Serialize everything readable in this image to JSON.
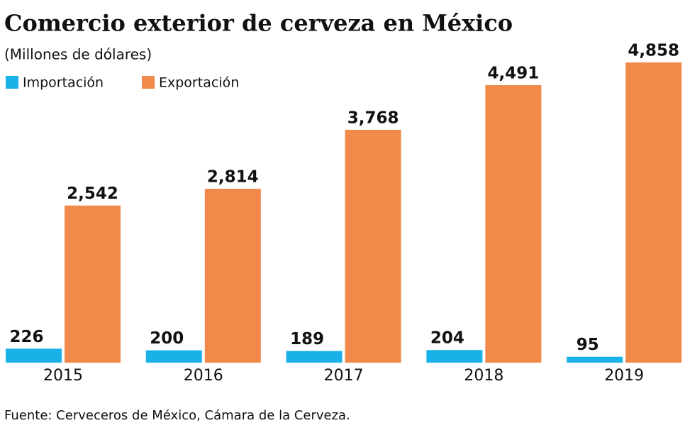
{
  "chart_data": {
    "type": "bar",
    "title": "Comercio exterior de cerveza en México",
    "subtitle": "(Millones de dólares)",
    "source": "Fuente: Cerveceros de México, Cámara de la Cerveza.",
    "categories": [
      "2015",
      "2016",
      "2017",
      "2018",
      "2019"
    ],
    "series": [
      {
        "name": "Importación",
        "color": "#1ab0e8",
        "values": [
          226,
          200,
          189,
          204,
          95
        ],
        "value_labels": [
          "226",
          "200",
          "189",
          "204",
          "95"
        ]
      },
      {
        "name": "Exportación",
        "color": "#f0894a",
        "values": [
          2542,
          2814,
          3768,
          4491,
          4858
        ],
        "value_labels": [
          "2,542",
          "2,814",
          "3,768",
          "4,491",
          "4,858"
        ]
      }
    ]
  }
}
